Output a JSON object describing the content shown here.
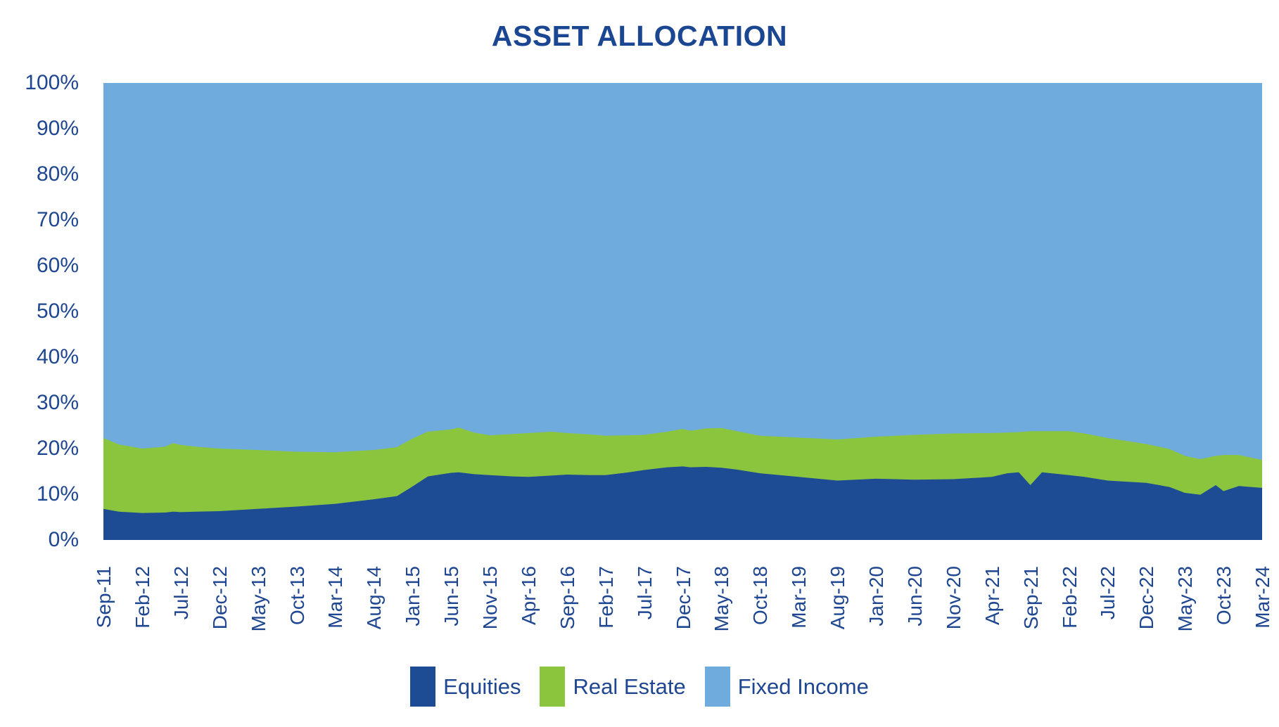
{
  "title": "ASSET ALLOCATION",
  "colors": {
    "background": "#FFFFFF",
    "text": "#1E4691",
    "title_text": "#1B4691",
    "equities": "#1D4B94",
    "real_estate": "#8BC53E",
    "fixed_income": "#6FABDC"
  },
  "y_axis": {
    "labels": [
      "100%",
      "90%",
      "80%",
      "70%",
      "60%",
      "50%",
      "40%",
      "30%",
      "20%",
      "10%",
      "0%"
    ]
  },
  "x_axis": {
    "labels": [
      "Sep-11",
      "Feb-12",
      "Jul-12",
      "Dec-12",
      "May-13",
      "Oct-13",
      "Mar-14",
      "Aug-14",
      "Jan-15",
      "Jun-15",
      "Nov-15",
      "Apr-16",
      "Sep-16",
      "Feb-17",
      "Jul-17",
      "Dec-17",
      "May-18",
      "Oct-18",
      "Mar-19",
      "Aug-19",
      "Jan-20",
      "Jun-20",
      "Nov-20",
      "Apr-21",
      "Sep-21",
      "Feb-22",
      "Jul-22",
      "Dec-22",
      "May-23",
      "Oct-23",
      "Mar-24"
    ]
  },
  "legend": [
    {
      "label": "Equities",
      "color": "#1D4B94"
    },
    {
      "label": "Real Estate",
      "color": "#8BC53E"
    },
    {
      "label": "Fixed Income",
      "color": "#6FABDC"
    }
  ],
  "chart_data": {
    "type": "area",
    "stacked": true,
    "title": "ASSET ALLOCATION",
    "xlabel": "",
    "ylabel": "",
    "ylim": [
      0,
      100
    ],
    "y_tick_step": 10,
    "grid": false,
    "legend_position": "bottom",
    "x_label_interval_months": 5,
    "categories": [
      "Sep-11",
      "Feb-12",
      "Jul-12",
      "Dec-12",
      "May-13",
      "Oct-13",
      "Mar-14",
      "Aug-14",
      "Jan-15",
      "Jun-15",
      "Nov-15",
      "Apr-16",
      "Sep-16",
      "Feb-17",
      "Jul-17",
      "Dec-17",
      "May-18",
      "Oct-18",
      "Mar-19",
      "Aug-19",
      "Jan-20",
      "Jun-20",
      "Nov-20",
      "Apr-21",
      "Sep-21",
      "Feb-22",
      "Jul-22",
      "Dec-22",
      "May-23",
      "Oct-23",
      "Mar-24"
    ],
    "series": [
      {
        "name": "Equities",
        "color": "#1D4B94",
        "values": [
          6.8,
          5.9,
          6.1,
          6.3,
          6.8,
          7.3,
          7.9,
          8.9,
          11.7,
          14.7,
          14.2,
          13.8,
          14.3,
          14.2,
          15.3,
          16.1,
          15.8,
          14.6,
          13.8,
          13.0,
          13.4,
          13.2,
          13.3,
          13.8,
          12.0,
          14.2,
          13.0,
          12.5,
          10.3,
          10.7,
          11.4
        ]
      },
      {
        "name": "Real Estate",
        "color": "#8BC53E",
        "values": [
          15.5,
          14.1,
          14.7,
          13.7,
          12.9,
          12.0,
          11.3,
          10.8,
          10.5,
          9.5,
          8.7,
          9.6,
          9.3,
          8.6,
          7.7,
          8.2,
          8.7,
          8.2,
          8.6,
          9.0,
          9.2,
          9.8,
          10.0,
          9.6,
          11.8,
          9.6,
          9.3,
          8.5,
          8.1,
          7.9,
          6.1
        ]
      },
      {
        "name": "Fixed Income",
        "color": "#6FABDC",
        "values": [
          77.7,
          80.0,
          79.2,
          80.0,
          80.3,
          80.7,
          80.8,
          80.3,
          77.8,
          75.8,
          77.1,
          76.6,
          76.4,
          77.2,
          77.0,
          75.7,
          75.5,
          77.2,
          77.6,
          78.0,
          77.4,
          77.0,
          76.7,
          76.6,
          76.2,
          76.2,
          77.7,
          79.0,
          81.6,
          81.4,
          82.5
        ]
      }
    ],
    "detail_format": "[month_offset_from_Sep-11, equities_pct, equities_plus_real_estate_pct]; fixed_income = 100 - second_value",
    "detail": [
      [
        0,
        6.8,
        22.3
      ],
      [
        2,
        6.2,
        20.9
      ],
      [
        5,
        5.9,
        20.0
      ],
      [
        8,
        6.0,
        20.4
      ],
      [
        9,
        6.2,
        21.2
      ],
      [
        10,
        6.1,
        20.8
      ],
      [
        12,
        6.2,
        20.4
      ],
      [
        15,
        6.3,
        20.0
      ],
      [
        20,
        6.8,
        19.7
      ],
      [
        25,
        7.3,
        19.3
      ],
      [
        30,
        7.9,
        19.2
      ],
      [
        35,
        8.9,
        19.7
      ],
      [
        38,
        9.6,
        20.3
      ],
      [
        40,
        11.7,
        22.2
      ],
      [
        42,
        13.9,
        23.7
      ],
      [
        45,
        14.7,
        24.2
      ],
      [
        46,
        14.8,
        24.6
      ],
      [
        48,
        14.4,
        23.5
      ],
      [
        50,
        14.2,
        22.9
      ],
      [
        53,
        13.9,
        23.2
      ],
      [
        55,
        13.8,
        23.4
      ],
      [
        58,
        14.1,
        23.7
      ],
      [
        60,
        14.3,
        23.4
      ],
      [
        63,
        14.2,
        23.1
      ],
      [
        65,
        14.2,
        22.8
      ],
      [
        68,
        14.8,
        22.9
      ],
      [
        70,
        15.3,
        23.0
      ],
      [
        73,
        15.9,
        23.7
      ],
      [
        75,
        16.1,
        24.3
      ],
      [
        76,
        15.9,
        23.9
      ],
      [
        78,
        16.0,
        24.4
      ],
      [
        80,
        15.8,
        24.5
      ],
      [
        82,
        15.4,
        23.8
      ],
      [
        85,
        14.6,
        22.8
      ],
      [
        90,
        13.8,
        22.4
      ],
      [
        95,
        13.0,
        22.0
      ],
      [
        100,
        13.4,
        22.6
      ],
      [
        105,
        13.2,
        23.0
      ],
      [
        110,
        13.3,
        23.3
      ],
      [
        115,
        13.8,
        23.4
      ],
      [
        117,
        14.6,
        23.5
      ],
      [
        118.5,
        14.8,
        23.6
      ],
      [
        120,
        12.0,
        23.8
      ],
      [
        121.5,
        14.8,
        23.8
      ],
      [
        125,
        14.2,
        23.8
      ],
      [
        127,
        13.8,
        23.3
      ],
      [
        130,
        13.0,
        22.3
      ],
      [
        135,
        12.5,
        21.0
      ],
      [
        138,
        11.6,
        19.9
      ],
      [
        140,
        10.3,
        18.4
      ],
      [
        142,
        9.9,
        17.7
      ],
      [
        144,
        12.0,
        18.4
      ],
      [
        145,
        10.7,
        18.6
      ],
      [
        147,
        11.8,
        18.6
      ],
      [
        150,
        11.4,
        17.5
      ]
    ]
  }
}
